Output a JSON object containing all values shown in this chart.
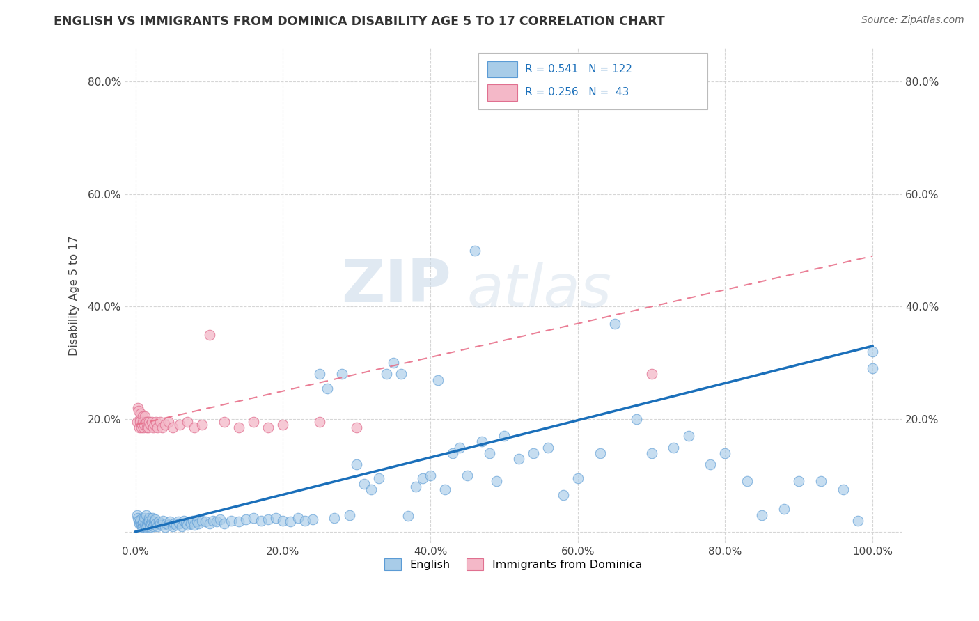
{
  "title": "ENGLISH VS IMMIGRANTS FROM DOMINICA DISABILITY AGE 5 TO 17 CORRELATION CHART",
  "source": "Source: ZipAtlas.com",
  "ylabel": "Disability Age 5 to 17",
  "xticklabels": [
    "0.0%",
    "20.0%",
    "40.0%",
    "60.0%",
    "80.0%",
    "100.0%"
  ],
  "yticklabels": [
    "",
    "20.0%",
    "40.0%",
    "60.0%",
    "80.0%"
  ],
  "xlim": [
    -0.015,
    1.04
  ],
  "ylim": [
    -0.02,
    0.86
  ],
  "english_color": "#a8cce8",
  "english_edge_color": "#5b9bd5",
  "dominica_color": "#f4b8c8",
  "dominica_edge_color": "#e07090",
  "english_line_color": "#1a6fba",
  "dominica_line_color": "#e8708a",
  "R_english": 0.541,
  "N_english": 122,
  "R_dominica": 0.256,
  "N_dominica": 43,
  "watermark_zip": "ZIP",
  "watermark_atlas": "atlas",
  "background_color": "#ffffff",
  "grid_color": "#cccccc",
  "english_x": [
    0.002,
    0.003,
    0.004,
    0.005,
    0.006,
    0.007,
    0.008,
    0.009,
    0.01,
    0.01,
    0.011,
    0.011,
    0.012,
    0.013,
    0.014,
    0.014,
    0.015,
    0.016,
    0.017,
    0.018,
    0.018,
    0.019,
    0.02,
    0.021,
    0.022,
    0.023,
    0.024,
    0.025,
    0.026,
    0.027,
    0.028,
    0.03,
    0.031,
    0.033,
    0.035,
    0.037,
    0.04,
    0.042,
    0.045,
    0.047,
    0.05,
    0.052,
    0.055,
    0.058,
    0.06,
    0.063,
    0.065,
    0.068,
    0.07,
    0.073,
    0.075,
    0.078,
    0.08,
    0.083,
    0.085,
    0.09,
    0.095,
    0.1,
    0.105,
    0.11,
    0.115,
    0.12,
    0.13,
    0.14,
    0.15,
    0.16,
    0.17,
    0.18,
    0.19,
    0.2,
    0.21,
    0.22,
    0.23,
    0.24,
    0.25,
    0.26,
    0.27,
    0.28,
    0.29,
    0.3,
    0.31,
    0.32,
    0.33,
    0.34,
    0.35,
    0.36,
    0.37,
    0.38,
    0.39,
    0.4,
    0.41,
    0.42,
    0.43,
    0.44,
    0.45,
    0.46,
    0.47,
    0.48,
    0.49,
    0.5,
    0.52,
    0.54,
    0.56,
    0.58,
    0.6,
    0.63,
    0.65,
    0.68,
    0.7,
    0.73,
    0.75,
    0.78,
    0.8,
    0.83,
    0.85,
    0.88,
    0.9,
    0.93,
    0.96,
    0.98,
    1.0,
    1.0
  ],
  "english_y": [
    0.03,
    0.025,
    0.02,
    0.015,
    0.018,
    0.022,
    0.012,
    0.008,
    0.01,
    0.015,
    0.02,
    0.018,
    0.025,
    0.012,
    0.008,
    0.03,
    0.015,
    0.01,
    0.02,
    0.025,
    0.018,
    0.012,
    0.008,
    0.015,
    0.02,
    0.025,
    0.01,
    0.018,
    0.012,
    0.022,
    0.015,
    0.01,
    0.018,
    0.015,
    0.012,
    0.02,
    0.008,
    0.015,
    0.012,
    0.018,
    0.01,
    0.015,
    0.012,
    0.018,
    0.015,
    0.01,
    0.02,
    0.015,
    0.012,
    0.018,
    0.015,
    0.02,
    0.012,
    0.018,
    0.015,
    0.02,
    0.018,
    0.015,
    0.02,
    0.018,
    0.022,
    0.015,
    0.02,
    0.018,
    0.022,
    0.025,
    0.02,
    0.022,
    0.025,
    0.02,
    0.018,
    0.025,
    0.02,
    0.022,
    0.28,
    0.255,
    0.025,
    0.28,
    0.03,
    0.12,
    0.085,
    0.075,
    0.095,
    0.28,
    0.3,
    0.28,
    0.028,
    0.08,
    0.095,
    0.1,
    0.27,
    0.075,
    0.14,
    0.15,
    0.1,
    0.5,
    0.16,
    0.14,
    0.09,
    0.17,
    0.13,
    0.14,
    0.15,
    0.065,
    0.095,
    0.14,
    0.37,
    0.2,
    0.14,
    0.15,
    0.17,
    0.12,
    0.14,
    0.09,
    0.03,
    0.04,
    0.09,
    0.09,
    0.075,
    0.02,
    0.32,
    0.29
  ],
  "dominica_x": [
    0.002,
    0.003,
    0.004,
    0.005,
    0.006,
    0.006,
    0.007,
    0.008,
    0.009,
    0.01,
    0.01,
    0.011,
    0.012,
    0.013,
    0.014,
    0.015,
    0.016,
    0.017,
    0.018,
    0.02,
    0.022,
    0.024,
    0.026,
    0.028,
    0.03,
    0.033,
    0.036,
    0.04,
    0.045,
    0.05,
    0.06,
    0.07,
    0.08,
    0.09,
    0.1,
    0.12,
    0.14,
    0.16,
    0.18,
    0.2,
    0.25,
    0.3,
    0.7
  ],
  "dominica_y": [
    0.195,
    0.22,
    0.215,
    0.185,
    0.2,
    0.195,
    0.21,
    0.185,
    0.19,
    0.205,
    0.195,
    0.185,
    0.19,
    0.205,
    0.195,
    0.185,
    0.195,
    0.185,
    0.195,
    0.19,
    0.195,
    0.185,
    0.19,
    0.195,
    0.185,
    0.195,
    0.185,
    0.19,
    0.195,
    0.185,
    0.19,
    0.195,
    0.185,
    0.19,
    0.35,
    0.195,
    0.185,
    0.195,
    0.185,
    0.19,
    0.195,
    0.185,
    0.28
  ]
}
